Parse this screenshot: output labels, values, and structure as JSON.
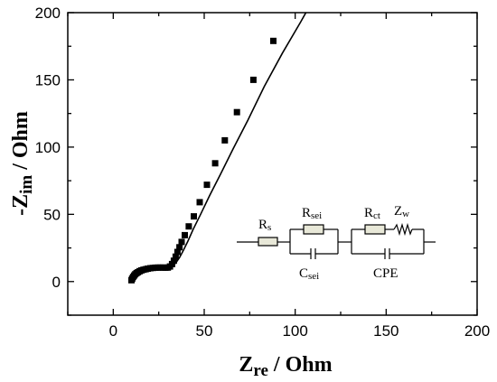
{
  "chart_data": {
    "type": "scatter",
    "title": "",
    "xlabel": {
      "main": "Z",
      "sub": "re",
      "rest": " /  Ohm"
    },
    "ylabel": {
      "main": "-Z",
      "sub": "im",
      "rest": " / Ohm"
    },
    "xlim": [
      -25,
      200
    ],
    "ylim": [
      -25,
      200
    ],
    "xticks": [
      0,
      50,
      100,
      150,
      200
    ],
    "yticks": [
      0,
      50,
      100,
      150,
      200
    ],
    "grid": false,
    "legend": "none",
    "series": [
      {
        "kind": "markers",
        "marker": "square",
        "color": "#000000",
        "x": [
          10.0,
          10.4,
          10.9,
          11.5,
          12.1,
          12.8,
          13.6,
          14.5,
          15.5,
          16.6,
          17.8,
          19.0,
          20.4,
          21.8,
          23.2,
          24.6,
          26.0,
          27.4,
          28.7,
          30.0,
          31.2,
          32.3,
          33.3,
          34.3,
          35.3,
          36.4,
          37.6,
          39.3,
          41.5,
          44.3,
          47.5,
          51.5,
          56.0,
          61.3,
          68.0,
          77.0,
          88.0,
          101.0
        ],
        "y": [
          1.0,
          2.2,
          3.4,
          4.5,
          5.4,
          6.3,
          7.0,
          7.7,
          8.3,
          8.8,
          9.2,
          9.6,
          9.9,
          10.1,
          10.3,
          10.4,
          10.4,
          10.4,
          10.3,
          10.4,
          11.2,
          13.0,
          15.5,
          18.5,
          22.0,
          25.5,
          29.5,
          34.5,
          41.0,
          48.5,
          59.0,
          72.0,
          88.0,
          105.0,
          126.0,
          150.0,
          179.0,
          205.0
        ]
      },
      {
        "kind": "fit-line",
        "color": "#000000",
        "x": [
          10.0,
          11.0,
          12.5,
          14.5,
          17.0,
          20.0,
          23.5,
          27.0,
          30.0,
          32.5,
          34.5,
          36.5,
          38.5,
          41.0,
          44.0,
          48.0,
          53.0,
          59.0,
          66.0,
          74.0,
          83.0,
          93.0,
          103.0,
          110.0
        ],
        "y": [
          1.0,
          3.0,
          5.0,
          6.8,
          8.3,
          9.5,
          10.2,
          10.4,
          10.5,
          11.5,
          14.0,
          18.0,
          23.0,
          30.0,
          39.0,
          50.0,
          64.0,
          80.0,
          99.0,
          120.0,
          145.0,
          170.0,
          193.0,
          210.0
        ]
      }
    ]
  },
  "circuit": {
    "rs": {
      "main": "R",
      "sub": "s"
    },
    "rsei": {
      "main": "R",
      "sub": "sei"
    },
    "csei": {
      "main": "C",
      "sub": "sei"
    },
    "rct": {
      "main": "R",
      "sub": "ct"
    },
    "zw": {
      "main": "Z",
      "sub": "w"
    },
    "cpe": "CPE"
  }
}
